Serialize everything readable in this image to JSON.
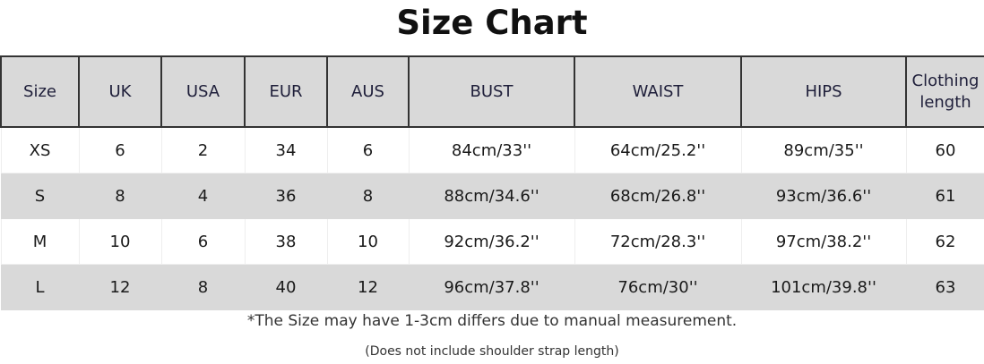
{
  "title": "Size Chart",
  "headers": [
    "Size",
    "UK",
    "USA",
    "EUR",
    "AUS",
    "BUST",
    "WAIST",
    "HIPS",
    "Clothing length"
  ],
  "rows": [
    [
      "XS",
      "6",
      "2",
      "34",
      "6",
      "84cm/33''",
      "64cm/25.2''",
      "89cm/35''",
      "60"
    ],
    [
      "S",
      "8",
      "4",
      "36",
      "8",
      "88cm/34.6''",
      "68cm/26.8''",
      "93cm/36.6''",
      "61"
    ],
    [
      "M",
      "10",
      "6",
      "38",
      "10",
      "92cm/36.2''",
      "72cm/28.3''",
      "97cm/38.2''",
      "62"
    ],
    [
      "L",
      "12",
      "8",
      "40",
      "12",
      "96cm/37.8''",
      "76cm/30''",
      "101cm/39.8''",
      "63"
    ]
  ],
  "note": "*The Size may have 1-3cm differs due to manual  measurement.",
  "subnote": "(Does not include shoulder strap length)",
  "colors": {
    "header_bg": "#d9d9d9",
    "stripe_bg": "#d9d9d9"
  }
}
